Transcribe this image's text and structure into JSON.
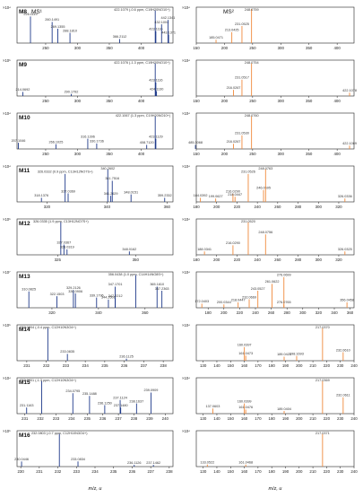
{
  "figure": {
    "xlabel": "m/z, u"
  },
  "colors": {
    "ms1_peak": "#1f3a8a",
    "ms2_peak": "#f08a3c",
    "axis": "#222222"
  },
  "chart_data": [
    {
      "type": "bar",
      "panel": "ms1",
      "row": 0,
      "label": "M8",
      "ms_label": "MS¹",
      "exponent": "×10⁴",
      "xlim": [
        205,
        450
      ],
      "ticks": [
        250,
        300,
        350,
        400
      ],
      "ylim": [
        0,
        1
      ],
      "peaks": [
        {
          "x": 226.1119,
          "y": 0.78,
          "label": "226.1119"
        },
        {
          "x": 260.1491,
          "y": 0.62,
          "label": "260.1491"
        },
        {
          "x": 269.1355,
          "y": 0.42,
          "label": "269.1355"
        },
        {
          "x": 288.181,
          "y": 0.3,
          "label": "288.1810"
        },
        {
          "x": 366.2112,
          "y": 0.12,
          "label": "366.2112"
        },
        {
          "x": 422.1079,
          "y": 0.96,
          "label": "422.1079 (-0.6 ppm, C19H20NO10+)"
        },
        {
          "x": 423.1116,
          "y": 0.35,
          "label": "423.1116"
        },
        {
          "x": 432.1004,
          "y": 0.55,
          "label": "432.1004"
        },
        {
          "x": 442.1341,
          "y": 0.68,
          "label": "442.1341"
        },
        {
          "x": 443.1371,
          "y": 0.25,
          "label": "443.1371"
        }
      ]
    },
    {
      "type": "bar",
      "panel": "ms2",
      "row": 0,
      "label": "",
      "ms_label": "MS²",
      "exponent": "×10⁴",
      "xlim": [
        150,
        430
      ],
      "ticks": [
        150,
        200,
        250,
        300,
        350,
        400
      ],
      "ylim": [
        0,
        1
      ],
      "peaks": [
        {
          "x": 185.0471,
          "y": 0.1,
          "label": "185.0471"
        },
        {
          "x": 213.0425,
          "y": 0.32,
          "label": "213.0425"
        },
        {
          "x": 231.0525,
          "y": 0.5,
          "label": "231.0525"
        },
        {
          "x": 248.0759,
          "y": 1.0,
          "label": "248.0759"
        }
      ]
    },
    {
      "type": "bar",
      "panel": "ms1",
      "row": 1,
      "label": "M9",
      "ms_label": "",
      "exponent": "×10⁵",
      "xlim": [
        205,
        450
      ],
      "ticks": [
        250,
        300,
        350,
        400
      ],
      "ylim": [
        0,
        1
      ],
      "peaks": [
        {
          "x": 214.0692,
          "y": 0.12,
          "label": "214.0692"
        },
        {
          "x": 290.1792,
          "y": 0.06,
          "label": "290.1792"
        },
        {
          "x": 422.1076,
          "y": 0.96,
          "label": "422.1076 (-1.3 ppm, C19H20NO10+)"
        },
        {
          "x": 423.1116,
          "y": 0.4,
          "label": "423.1116"
        },
        {
          "x": 424.113,
          "y": 0.14,
          "label": "424.1130"
        }
      ]
    },
    {
      "type": "bar",
      "panel": "ms2",
      "row": 1,
      "label": "",
      "ms_label": "",
      "exponent": "×10⁴",
      "xlim": [
        150,
        430
      ],
      "ticks": [
        150,
        200,
        250,
        300,
        350,
        400
      ],
      "ylim": [
        0,
        1
      ],
      "peaks": [
        {
          "x": 216.0267,
          "y": 0.18,
          "label": "216.0267"
        },
        {
          "x": 231.0517,
          "y": 0.48,
          "label": "231.0517"
        },
        {
          "x": 248.0754,
          "y": 0.96,
          "label": "248.0754"
        },
        {
          "x": 422.1078,
          "y": 0.1,
          "label": "422.1078"
        }
      ]
    },
    {
      "type": "bar",
      "panel": "ms1",
      "row": 2,
      "label": "M10",
      "ms_label": "",
      "exponent": "×10⁴",
      "xlim": [
        205,
        450
      ],
      "ticks": [
        250,
        300,
        350,
        400
      ],
      "ylim": [
        0,
        1
      ],
      "peaks": [
        {
          "x": 207.1046,
          "y": 0.18,
          "label": "207.1046"
        },
        {
          "x": 266.1025,
          "y": 0.14,
          "label": "266.1025"
        },
        {
          "x": 316.1396,
          "y": 0.3,
          "label": "316.1396"
        },
        {
          "x": 330.1736,
          "y": 0.16,
          "label": "330.1736"
        },
        {
          "x": 408.712,
          "y": 0.12,
          "label": "408.7120"
        },
        {
          "x": 422.1067,
          "y": 0.96,
          "label": "422.1067 (1.3 ppm, C19H20NO10+)"
        },
        {
          "x": 423.1129,
          "y": 0.3,
          "label": "423.1129"
        },
        {
          "x": 485.3068,
          "y": 0.12,
          "label": "485.3068"
        }
      ]
    },
    {
      "type": "bar",
      "panel": "ms2",
      "row": 2,
      "label": "",
      "ms_label": "",
      "exponent": "×10⁴",
      "xlim": [
        150,
        430
      ],
      "ticks": [
        150,
        200,
        250,
        300,
        350,
        400
      ],
      "ylim": [
        0,
        1
      ],
      "peaks": [
        {
          "x": 216.0267,
          "y": 0.15,
          "label": "216.0267"
        },
        {
          "x": 231.053,
          "y": 0.4,
          "label": "231.0530"
        },
        {
          "x": 248.076,
          "y": 0.96,
          "label": "248.0760"
        },
        {
          "x": 422.1069,
          "y": 0.1,
          "label": "422.1069"
        }
      ]
    },
    {
      "type": "bar",
      "panel": "ms1",
      "row": 3,
      "label": "M11",
      "ms_label": "",
      "exponent": "×10⁴",
      "xlim": [
        310,
        362
      ],
      "ticks": [
        320,
        340,
        360
      ],
      "ylim": [
        0,
        1
      ],
      "peaks": [
        {
          "x": 318.1376,
          "y": 0.12,
          "label": "318.1376"
        },
        {
          "x": 326.0332,
          "y": 0.82,
          "label": "326.0332 (0.9 ppm, C13H12NO7S+)"
        },
        {
          "x": 327.0369,
          "y": 0.25,
          "label": "327.0369"
        },
        {
          "x": 340.2602,
          "y": 0.96,
          "label": "340.2602"
        },
        {
          "x": 341.2629,
          "y": 0.18,
          "label": "341.2629"
        },
        {
          "x": 341.7516,
          "y": 0.62,
          "label": "341.7516"
        },
        {
          "x": 348.0151,
          "y": 0.22,
          "label": "348.0151"
        },
        {
          "x": 359.2332,
          "y": 0.12,
          "label": "359.2332"
        }
      ]
    },
    {
      "type": "bar",
      "panel": "ms2",
      "row": 3,
      "label": "",
      "ms_label": "",
      "exponent": "×10⁴",
      "xlim": [
        180,
        335
      ],
      "ticks": [
        180,
        200,
        220,
        240,
        260,
        280,
        300,
        320
      ],
      "ylim": [
        0,
        1
      ],
      "peaks": [
        {
          "x": 184.0392,
          "y": 0.12,
          "label": "184.0392"
        },
        {
          "x": 199.0627,
          "y": 0.1,
          "label": "199.0627"
        },
        {
          "x": 216.029,
          "y": 0.24,
          "label": "216.0290"
        },
        {
          "x": 218.0447,
          "y": 0.15,
          "label": "218.0447"
        },
        {
          "x": 231.0526,
          "y": 0.82,
          "label": "231.0526"
        },
        {
          "x": 246.0695,
          "y": 0.35,
          "label": "246.0695"
        },
        {
          "x": 248.0763,
          "y": 0.96,
          "label": "248.0763"
        },
        {
          "x": 326.0336,
          "y": 0.1,
          "label": "326.0336"
        }
      ]
    },
    {
      "type": "bar",
      "panel": "ms1",
      "row": 4,
      "label": "M12",
      "ms_label": "",
      "exponent": "×10⁵",
      "xlim": [
        312,
        362
      ],
      "ticks": [
        325,
        350
      ],
      "ylim": [
        0,
        1
      ],
      "peaks": [
        {
          "x": 326.0335,
          "y": 0.96,
          "label": "326.0335 (1.9 ppm, C13H12NO7S+)"
        },
        {
          "x": 327.0367,
          "y": 0.3,
          "label": "327.0367"
        },
        {
          "x": 328.0319,
          "y": 0.16,
          "label": "328.0319"
        },
        {
          "x": 348.0162,
          "y": 0.1,
          "label": "348.0162"
        }
      ]
    },
    {
      "type": "bar",
      "panel": "ms2",
      "row": 4,
      "label": "",
      "ms_label": "",
      "exponent": "×10⁴",
      "xlim": [
        180,
        335
      ],
      "ticks": [
        180,
        200,
        220,
        240,
        260,
        280,
        300,
        320
      ],
      "ylim": [
        0,
        1
      ],
      "peaks": [
        {
          "x": 188.0341,
          "y": 0.1,
          "label": "188.0341"
        },
        {
          "x": 216.029,
          "y": 0.28,
          "label": "216.0290"
        },
        {
          "x": 231.052,
          "y": 0.96,
          "label": "231.0520"
        },
        {
          "x": 248.0756,
          "y": 0.6,
          "label": "248.0756"
        },
        {
          "x": 326.0325,
          "y": 0.1,
          "label": "326.0325"
        }
      ]
    },
    {
      "type": "bar",
      "panel": "ms1",
      "row": 5,
      "label": "M13",
      "ms_label": "",
      "exponent": "×10⁷",
      "xlim": [
        305,
        372
      ],
      "ticks": [
        320,
        340,
        360
      ],
      "ylim": [
        0,
        1
      ],
      "peaks": [
        {
          "x": 310.0825,
          "y": 0.48,
          "label": "310.0825"
        },
        {
          "x": 322.1503,
          "y": 0.34,
          "label": "322.1503"
        },
        {
          "x": 329.2126,
          "y": 0.52,
          "label": "329.2126"
        },
        {
          "x": 330.0906,
          "y": 0.42,
          "label": "330.0906"
        },
        {
          "x": 339.1796,
          "y": 0.3,
          "label": "339.1796"
        },
        {
          "x": 344.2606,
          "y": 0.24,
          "label": "344.2606"
        },
        {
          "x": 347.1701,
          "y": 0.62,
          "label": "347.1701"
        },
        {
          "x": 347.2212,
          "y": 0.28,
          "label": "347.2212"
        },
        {
          "x": 356.0438,
          "y": 0.96,
          "label": "356.0438 (1.0 ppm, C14H14NO8S+)"
        },
        {
          "x": 365.161,
          "y": 0.62,
          "label": "365.1610"
        },
        {
          "x": 367.2363,
          "y": 0.5,
          "label": "367.2363"
        }
      ]
    },
    {
      "type": "bar",
      "panel": "ms2",
      "row": 5,
      "label": "",
      "ms_label": "",
      "exponent": "×10⁴",
      "xlim": [
        165,
        365
      ],
      "ticks": [
        180,
        200,
        220,
        240,
        260,
        280,
        300,
        320,
        340,
        360
      ],
      "ylim": [
        0,
        1
      ],
      "peaks": [
        {
          "x": 172.0403,
          "y": 0.12,
          "label": "172.0403"
        },
        {
          "x": 200.0344,
          "y": 0.1,
          "label": "200.0344"
        },
        {
          "x": 218.0447,
          "y": 0.16,
          "label": "218.0447"
        },
        {
          "x": 232.0669,
          "y": 0.25,
          "label": "232.0669"
        },
        {
          "x": 243.0527,
          "y": 0.5,
          "label": "243.0527"
        },
        {
          "x": 261.0622,
          "y": 0.7,
          "label": "261.0622"
        },
        {
          "x": 276.0699,
          "y": 0.9,
          "label": "276.0699"
        },
        {
          "x": 276.0765,
          "y": 0.1,
          "label": "276.0765"
        },
        {
          "x": 356.0458,
          "y": 0.16,
          "label": "356.0458"
        }
      ]
    },
    {
      "type": "bar",
      "panel": "ms1",
      "row": 6,
      "label": "M14",
      "ms_label": "",
      "exponent": "×10⁵",
      "xlim": [
        230.5,
        238.5
      ],
      "ticks": [
        231,
        232,
        233,
        234,
        235,
        236,
        237,
        238
      ],
      "ylim": [
        0,
        1
      ],
      "peaks": [
        {
          "x": 232.0804,
          "y": 0.96,
          "label": "232.0804 (-0.4 ppm, C12H10N3O4+)"
        },
        {
          "x": 233.0835,
          "y": 0.2,
          "label": "233.0835"
        },
        {
          "x": 236.1125,
          "y": 0.06,
          "label": "236.1125"
        }
      ]
    },
    {
      "type": "bar",
      "panel": "ms2",
      "row": 6,
      "label": "",
      "ms_label": "",
      "exponent": "×10⁴",
      "xlim": [
        125,
        240
      ],
      "ticks": [
        130,
        140,
        150,
        160,
        170,
        180,
        190,
        200,
        210,
        220,
        230,
        240
      ],
      "ylim": [
        0,
        1
      ],
      "peaks": [
        {
          "x": 160.0397,
          "y": 0.4,
          "label": "160.0397"
        },
        {
          "x": 161.0473,
          "y": 0.15,
          "label": "161.0473"
        },
        {
          "x": 189.042,
          "y": 0.12,
          "label": "189.0420"
        },
        {
          "x": 198.1693,
          "y": 0.14,
          "label": "198.1693"
        },
        {
          "x": 217.037,
          "y": 0.96,
          "label": "217.0370"
        },
        {
          "x": 232.061,
          "y": 0.25,
          "label": "232.0610"
        }
      ]
    },
    {
      "type": "bar",
      "panel": "ms1",
      "row": 7,
      "label": "M15",
      "ms_label": "",
      "exponent": "×10⁴",
      "xlim": [
        230.5,
        240.5
      ],
      "ticks": [
        231,
        232,
        233,
        234,
        235,
        236,
        237,
        238,
        239,
        240
      ],
      "ylim": [
        0,
        1
      ],
      "peaks": [
        {
          "x": 231.1163,
          "y": 0.18,
          "label": "231.1163"
        },
        {
          "x": 232.0801,
          "y": 0.96,
          "label": "232.0801 (-1.3 ppm, C12H10N3O4+)"
        },
        {
          "x": 234.0795,
          "y": 0.6,
          "label": "234.0795"
        },
        {
          "x": 235.1488,
          "y": 0.52,
          "label": "235.1488"
        },
        {
          "x": 236.125,
          "y": 0.25,
          "label": "236.1250"
        },
        {
          "x": 237.1124,
          "y": 0.4,
          "label": "237.1124"
        },
        {
          "x": 237.148,
          "y": 0.18,
          "label": "237.1480"
        },
        {
          "x": 238.1637,
          "y": 0.3,
          "label": "238.1637"
        },
        {
          "x": 239.0909,
          "y": 0.62,
          "label": "239.0909"
        }
      ]
    },
    {
      "type": "bar",
      "panel": "ms2",
      "row": 7,
      "label": "",
      "ms_label": "",
      "exponent": "×10⁴",
      "xlim": [
        125,
        240
      ],
      "ticks": [
        130,
        140,
        150,
        160,
        170,
        180,
        190,
        200,
        210,
        220,
        230,
        240
      ],
      "ylim": [
        0,
        1
      ],
      "peaks": [
        {
          "x": 137.0603,
          "y": 0.15,
          "label": "137.0603"
        },
        {
          "x": 160.0399,
          "y": 0.3,
          "label": "160.0399"
        },
        {
          "x": 161.0476,
          "y": 0.12,
          "label": "161.0476"
        },
        {
          "x": 189.0404,
          "y": 0.08,
          "label": "189.0404"
        },
        {
          "x": 217.0369,
          "y": 0.96,
          "label": "217.0369"
        },
        {
          "x": 232.0611,
          "y": 0.48,
          "label": "232.0611"
        }
      ]
    },
    {
      "type": "bar",
      "panel": "ms1",
      "row": 8,
      "label": "M16",
      "ms_label": "",
      "exponent": "×10⁵",
      "xlim": [
        229.8,
        238.2
      ],
      "ticks": [
        230,
        231,
        232,
        233,
        234,
        235,
        236,
        237,
        238
      ],
      "ylim": [
        0,
        1
      ],
      "peaks": [
        {
          "x": 230.0446,
          "y": 0.15,
          "label": "230.0446"
        },
        {
          "x": 232.0803,
          "y": 0.96,
          "label": "232.0803 (-0.7 ppm, C12H10N3O4+)"
        },
        {
          "x": 233.0834,
          "y": 0.15,
          "label": "233.0834"
        },
        {
          "x": 236.1126,
          "y": 0.05,
          "label": "236.1126"
        },
        {
          "x": 237.1462,
          "y": 0.05,
          "label": "237.1462"
        }
      ]
    },
    {
      "type": "bar",
      "panel": "ms2",
      "row": 8,
      "label": "",
      "ms_label": "",
      "exponent": "×10⁴",
      "xlim": [
        125,
        240
      ],
      "ticks": [
        130,
        140,
        150,
        160,
        170,
        180,
        190,
        200,
        210,
        220,
        230,
        240
      ],
      "ylim": [
        0,
        1
      ],
      "peaks": [
        {
          "x": 133.0522,
          "y": 0.06,
          "label": "133.0522"
        },
        {
          "x": 161.0468,
          "y": 0.06,
          "label": "161.0468"
        },
        {
          "x": 217.0371,
          "y": 0.96,
          "label": "217.0371"
        }
      ]
    }
  ]
}
